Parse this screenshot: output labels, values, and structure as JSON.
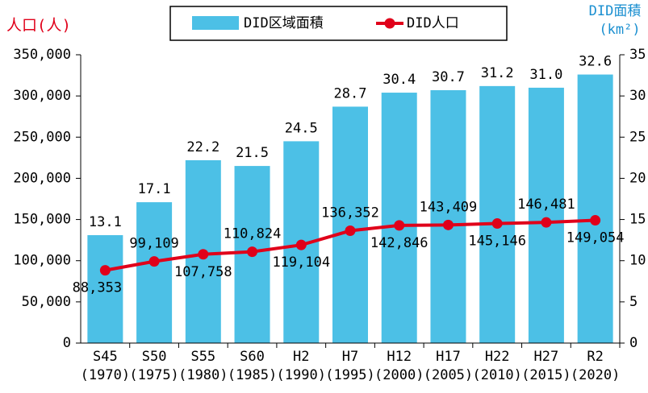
{
  "chart_data": {
    "type": "bar_line",
    "categories": [
      [
        "S45",
        "(1970)"
      ],
      [
        "S50",
        "(1975)"
      ],
      [
        "S55",
        "(1980)"
      ],
      [
        "S60",
        "(1985)"
      ],
      [
        "H2",
        "(1990)"
      ],
      [
        "H7",
        "(1995)"
      ],
      [
        "H12",
        "(2000)"
      ],
      [
        "H17",
        "(2005)"
      ],
      [
        "H22",
        "(2010)"
      ],
      [
        "H27",
        "(2015)"
      ],
      [
        "R2",
        "(2020)"
      ]
    ],
    "ylabel": "人口(人)",
    "y2label": [
      "DID面積",
      "(km²)"
    ],
    "ylim": [
      0,
      350000
    ],
    "yticks": [
      0,
      {
        "value": 50000,
        "label": "50,000"
      },
      {
        "value": 100000,
        "label": "100,000"
      },
      {
        "value": 150000,
        "label": "150,000"
      },
      {
        "value": 200000,
        "label": "200,000"
      },
      {
        "value": 250000,
        "label": "250,000"
      },
      {
        "value": 300000,
        "label": "300,000"
      },
      {
        "value": 350000,
        "label": "350,000"
      }
    ],
    "y2lim": [
      0,
      35
    ],
    "y2ticks": [
      0,
      5,
      10,
      15,
      20,
      25,
      30,
      35
    ],
    "grid": false,
    "series": [
      {
        "name": "DID区域面積",
        "type": "bar",
        "axis": "y2",
        "color": "#4cc0e6",
        "values": [
          13.1,
          17.1,
          22.2,
          21.5,
          24.5,
          28.7,
          30.4,
          30.7,
          31.2,
          31.0,
          32.6
        ],
        "value_labels": [
          "13.1",
          "17.1",
          "22.2",
          "21.5",
          "24.5",
          "28.7",
          "30.4",
          "30.7",
          "31.2",
          "31.0",
          "32.6"
        ]
      },
      {
        "name": "DID人口",
        "type": "line",
        "color": "#e0001a",
        "values": [
          88353,
          99109,
          107758,
          110824,
          119104,
          136352,
          142846,
          143409,
          145146,
          146481,
          149054
        ],
        "value_labels": [
          "88,353",
          "99,109",
          "107,758",
          "110,824",
          "119,104",
          "136,352",
          "142,846",
          "143,409",
          "145,146",
          "146,481",
          "149,054"
        ]
      }
    ]
  }
}
